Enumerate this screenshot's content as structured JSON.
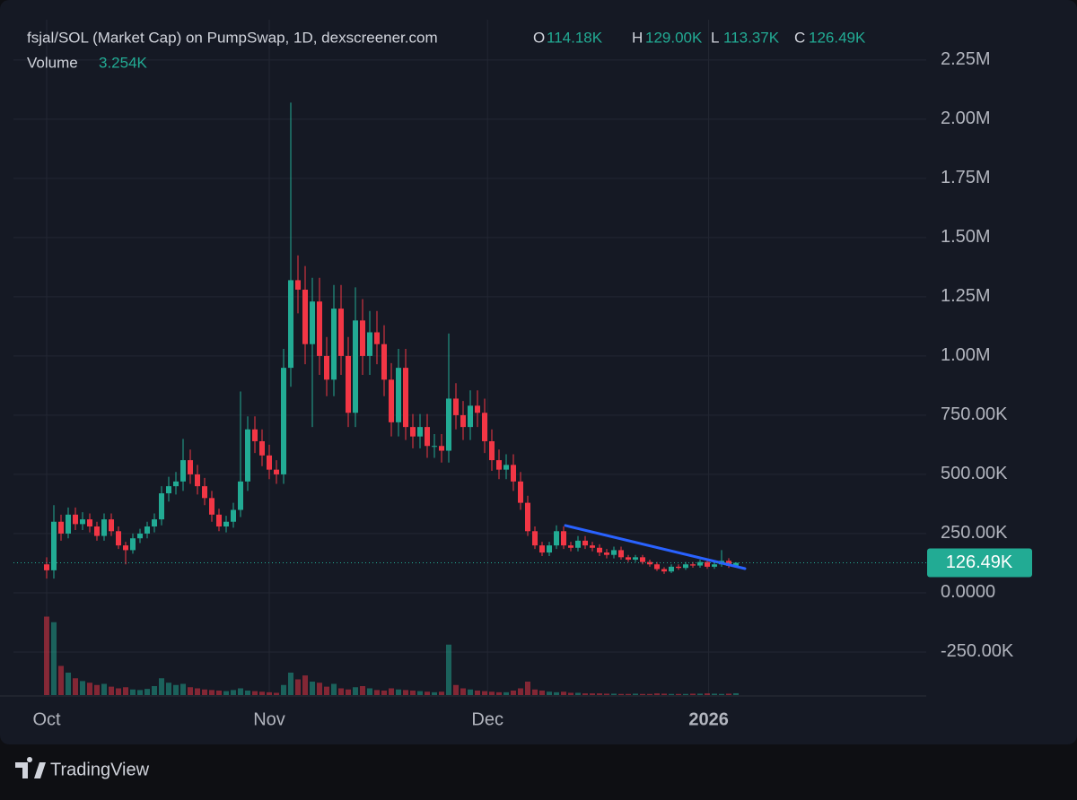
{
  "chart_data": {
    "type": "candlestick",
    "legend": {
      "symbol": "fsjal/SOL (Market Cap) on PumpSwap, 1D, dexscreener.com",
      "open_label": "O",
      "open": "114.18K",
      "high_label": "H",
      "high": "129.00K",
      "low_label": "L",
      "low": "113.37K",
      "close_label": "C",
      "close": "126.49K",
      "volume_label": "Volume",
      "volume": "3.254K"
    },
    "up_color": "#22ab94",
    "down_color": "#f23645",
    "open": [
      120000,
      95000,
      300000,
      250000,
      330000,
      290000,
      310000,
      280000,
      240000,
      310000,
      260000,
      200000,
      180000,
      230000,
      250000,
      280000,
      310000,
      420000,
      450000,
      470000,
      560000,
      500000,
      450000,
      400000,
      330000,
      280000,
      300000,
      350000,
      470000,
      690000,
      640000,
      580000,
      520000,
      500000,
      950000,
      1320000,
      1280000,
      1050000,
      1230000,
      1000000,
      900000,
      1200000,
      1000000,
      760000,
      1150000,
      1000000,
      1100000,
      1050000,
      900000,
      720000,
      950000,
      700000,
      660000,
      700000,
      620000,
      620000,
      600000,
      820000,
      750000,
      700000,
      790000,
      760000,
      640000,
      560000,
      520000,
      540000,
      470000,
      380000,
      260000,
      200000,
      170000,
      200000,
      260000,
      200000,
      190000,
      220000,
      200000,
      190000,
      170000,
      160000,
      180000,
      150000,
      140000,
      150000,
      130000,
      120000,
      100000,
      90000,
      110000,
      105000,
      120000,
      115000,
      130000,
      110000,
      120000,
      135000,
      114180
    ],
    "high": [
      150000,
      370000,
      330000,
      360000,
      360000,
      340000,
      335000,
      300000,
      335000,
      335000,
      280000,
      215000,
      250000,
      270000,
      300000,
      335000,
      450000,
      490000,
      510000,
      650000,
      605000,
      540000,
      485000,
      430000,
      355000,
      325000,
      380000,
      850000,
      745000,
      745000,
      690000,
      625000,
      560000,
      1030000,
      2070000,
      1425000,
      1380000,
      1330000,
      1330000,
      1080000,
      1300000,
      1300000,
      1080000,
      1290000,
      1240000,
      1190000,
      1190000,
      1130000,
      970000,
      1030000,
      1030000,
      755000,
      755000,
      755000,
      670000,
      670000,
      1095000,
      885000,
      810000,
      855000,
      855000,
      820000,
      690000,
      605000,
      585000,
      585000,
      510000,
      410000,
      280000,
      215000,
      215000,
      285000,
      280000,
      215000,
      240000,
      240000,
      215000,
      205000,
      185000,
      195000,
      195000,
      160000,
      160000,
      160000,
      140000,
      130000,
      108000,
      120000,
      120000,
      130000,
      130000,
      140000,
      140000,
      130000,
      180000,
      146000,
      129000
    ],
    "low": [
      60000,
      60000,
      220000,
      230000,
      265000,
      265000,
      255000,
      220000,
      220000,
      240000,
      185000,
      120000,
      165000,
      210000,
      230000,
      255000,
      285000,
      385000,
      415000,
      430000,
      460000,
      415000,
      370000,
      300000,
      260000,
      255000,
      275000,
      320000,
      430000,
      590000,
      535000,
      480000,
      460000,
      460000,
      870000,
      1180000,
      965000,
      700000,
      920000,
      830000,
      830000,
      920000,
      700000,
      700000,
      920000,
      920000,
      965000,
      830000,
      660000,
      660000,
      645000,
      610000,
      610000,
      570000,
      570000,
      550000,
      550000,
      690000,
      645000,
      645000,
      700000,
      590000,
      515000,
      480000,
      480000,
      430000,
      350000,
      240000,
      185000,
      155000,
      155000,
      185000,
      185000,
      175000,
      175000,
      185000,
      175000,
      155000,
      145000,
      145000,
      140000,
      130000,
      130000,
      120000,
      110000,
      92000,
      80000,
      83000,
      97000,
      97000,
      106000,
      106000,
      101000,
      101000,
      110000,
      105000,
      113370
    ],
    "close": [
      95000,
      300000,
      250000,
      330000,
      290000,
      310000,
      280000,
      240000,
      310000,
      260000,
      200000,
      180000,
      230000,
      250000,
      280000,
      310000,
      420000,
      450000,
      470000,
      560000,
      500000,
      450000,
      400000,
      330000,
      280000,
      300000,
      350000,
      470000,
      690000,
      640000,
      580000,
      520000,
      500000,
      950000,
      1320000,
      1280000,
      1050000,
      1230000,
      1000000,
      900000,
      1200000,
      1000000,
      760000,
      1150000,
      1000000,
      1100000,
      1050000,
      900000,
      720000,
      950000,
      700000,
      660000,
      700000,
      620000,
      620000,
      600000,
      820000,
      750000,
      700000,
      790000,
      760000,
      640000,
      560000,
      520000,
      540000,
      470000,
      380000,
      260000,
      200000,
      170000,
      200000,
      260000,
      200000,
      190000,
      220000,
      200000,
      190000,
      170000,
      160000,
      180000,
      150000,
      140000,
      150000,
      130000,
      120000,
      100000,
      90000,
      110000,
      105000,
      120000,
      115000,
      130000,
      110000,
      120000,
      135000,
      114180,
      126490
    ],
    "volume": [
      140000,
      130000,
      52000,
      40000,
      30000,
      25000,
      22000,
      18000,
      20000,
      15000,
      12000,
      14000,
      10000,
      9000,
      11000,
      16000,
      30000,
      22000,
      18000,
      20000,
      14000,
      12000,
      10000,
      9000,
      8000,
      7000,
      9000,
      12000,
      8000,
      7000,
      6000,
      5000,
      4000,
      18000,
      40000,
      28000,
      35000,
      24000,
      22000,
      15000,
      20000,
      12000,
      10000,
      14000,
      16000,
      12000,
      9000,
      8000,
      12000,
      10000,
      9000,
      8000,
      7000,
      6000,
      5000,
      6000,
      90000,
      18000,
      12000,
      10000,
      8000,
      7000,
      6000,
      5000,
      5000,
      8000,
      12000,
      24000,
      10000,
      8000,
      6000,
      5000,
      6000,
      4000,
      4000,
      3000,
      3000,
      3000,
      2500,
      2500,
      2000,
      2000,
      2500,
      2000,
      2000,
      3000,
      2500,
      2000,
      2000,
      2000,
      2500,
      2500,
      3000,
      2500,
      2000,
      2500,
      3254
    ],
    "volume_ylim": [
      0,
      160000
    ],
    "xlim": [
      -4.625,
      122.5
    ],
    "xticks": [
      {
        "value": 0,
        "label": "Oct"
      },
      {
        "value": 31,
        "label": "Nov"
      },
      {
        "value": 61.4,
        "label": "Dec"
      },
      {
        "value": 92.2,
        "label": "2026"
      }
    ],
    "ylim": [
      -432000,
      2420000
    ],
    "yticks": [
      {
        "value": -250000,
        "label": "-250.00K"
      },
      {
        "value": 0,
        "label": "0.0000"
      },
      {
        "value": 250000,
        "label": "250.00K"
      },
      {
        "value": 500000,
        "label": "500.00K"
      },
      {
        "value": 750000,
        "label": "750.00K"
      },
      {
        "value": 1000000,
        "label": "1.00M"
      },
      {
        "value": 1250000,
        "label": "1.25M"
      },
      {
        "value": 1500000,
        "label": "1.50M"
      },
      {
        "value": 1750000,
        "label": "1.75M"
      },
      {
        "value": 2000000,
        "label": "2.00M"
      },
      {
        "value": 2250000,
        "label": "2.25M"
      }
    ],
    "grid": true,
    "last_price": {
      "value": 126490,
      "label": "126.49K"
    },
    "trendline": {
      "x": [
        72.25,
        97.25
      ],
      "y": [
        284000,
        102000
      ],
      "color": "#2962ff"
    },
    "footer": "TradingView"
  }
}
